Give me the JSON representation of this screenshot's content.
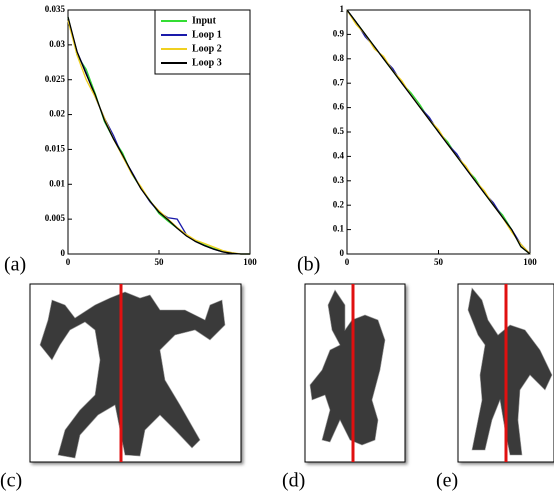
{
  "panel_labels": [
    "(a)",
    "(b)",
    "(c)",
    "(d)",
    "(e)"
  ],
  "chart_data": [
    {
      "type": "line",
      "x": [
        0,
        5,
        10,
        15,
        20,
        25,
        30,
        35,
        40,
        45,
        50,
        55,
        60,
        65,
        70,
        75,
        80,
        85,
        90,
        95,
        100
      ],
      "xlim": [
        0,
        100
      ],
      "xticks": [
        0,
        50,
        100
      ],
      "ylim": [
        0,
        0.035
      ],
      "yticks": [
        0,
        0.005,
        0.01,
        0.015,
        0.02,
        0.025,
        0.03,
        0.035
      ],
      "legend": "upper right",
      "series": [
        {
          "name": "Input",
          "color": "#33dd33",
          "values": [
            0.034,
            0.0285,
            0.0265,
            0.023,
            0.019,
            0.0165,
            0.0145,
            0.0115,
            0.0095,
            0.0077,
            0.0058,
            0.0047,
            0.0037,
            0.0027,
            0.0019,
            0.0013,
            0.0008,
            0.0004,
            0.0001,
            0,
            0
          ]
        },
        {
          "name": "Loop 1",
          "color": "#1a1aaa",
          "values": [
            0.0335,
            0.029,
            0.026,
            0.0225,
            0.0195,
            0.017,
            0.014,
            0.0118,
            0.0095,
            0.0075,
            0.006,
            0.0052,
            0.005,
            0.0028,
            0.0018,
            0.0012,
            0.0007,
            0.0003,
            0.0001,
            0,
            0
          ]
        },
        {
          "name": "Loop 2",
          "color": "#f0d020",
          "values": [
            0.0335,
            0.0285,
            0.025,
            0.0225,
            0.0195,
            0.0165,
            0.014,
            0.0115,
            0.0097,
            0.0076,
            0.0062,
            0.005,
            0.0038,
            0.0028,
            0.002,
            0.0015,
            0.001,
            0.0005,
            0.0002,
            0,
            0
          ]
        },
        {
          "name": "Loop 3",
          "color": "#000000",
          "values": [
            0.034,
            0.029,
            0.0258,
            0.0228,
            0.0192,
            0.0165,
            0.0142,
            0.0117,
            0.0094,
            0.0076,
            0.006,
            0.0049,
            0.0037,
            0.0026,
            0.0018,
            0.0012,
            0.0007,
            0.0003,
            0.0001,
            0,
            0
          ]
        }
      ]
    },
    {
      "type": "line",
      "x": [
        0,
        5,
        10,
        15,
        20,
        25,
        30,
        35,
        40,
        45,
        50,
        55,
        60,
        65,
        70,
        75,
        80,
        85,
        90,
        95,
        100
      ],
      "xlim": [
        0,
        100
      ],
      "xticks": [
        0,
        50,
        100
      ],
      "ylim": [
        0,
        1
      ],
      "yticks": [
        0,
        0.1,
        0.2,
        0.3,
        0.4,
        0.5,
        0.6,
        0.7,
        0.8,
        0.9,
        1
      ],
      "series": [
        {
          "color": "#33dd33",
          "values": [
            1,
            0.95,
            0.9,
            0.85,
            0.8,
            0.75,
            0.7,
            0.66,
            0.61,
            0.55,
            0.5,
            0.46,
            0.4,
            0.35,
            0.31,
            0.25,
            0.2,
            0.16,
            0.1,
            0.03,
            0
          ]
        },
        {
          "color": "#1a1aaa",
          "values": [
            1,
            0.95,
            0.89,
            0.85,
            0.8,
            0.76,
            0.7,
            0.65,
            0.6,
            0.56,
            0.5,
            0.45,
            0.41,
            0.35,
            0.3,
            0.25,
            0.21,
            0.15,
            0.1,
            0.04,
            0
          ]
        },
        {
          "color": "#f0d020",
          "values": [
            1,
            0.94,
            0.9,
            0.84,
            0.81,
            0.75,
            0.71,
            0.65,
            0.6,
            0.55,
            0.51,
            0.45,
            0.4,
            0.36,
            0.3,
            0.26,
            0.2,
            0.15,
            0.09,
            0.04,
            0
          ]
        },
        {
          "color": "#000000",
          "values": [
            1,
            0.95,
            0.9,
            0.85,
            0.8,
            0.75,
            0.7,
            0.65,
            0.6,
            0.55,
            0.5,
            0.45,
            0.4,
            0.35,
            0.3,
            0.25,
            0.2,
            0.15,
            0.1,
            0.03,
            0
          ]
        }
      ]
    }
  ]
}
